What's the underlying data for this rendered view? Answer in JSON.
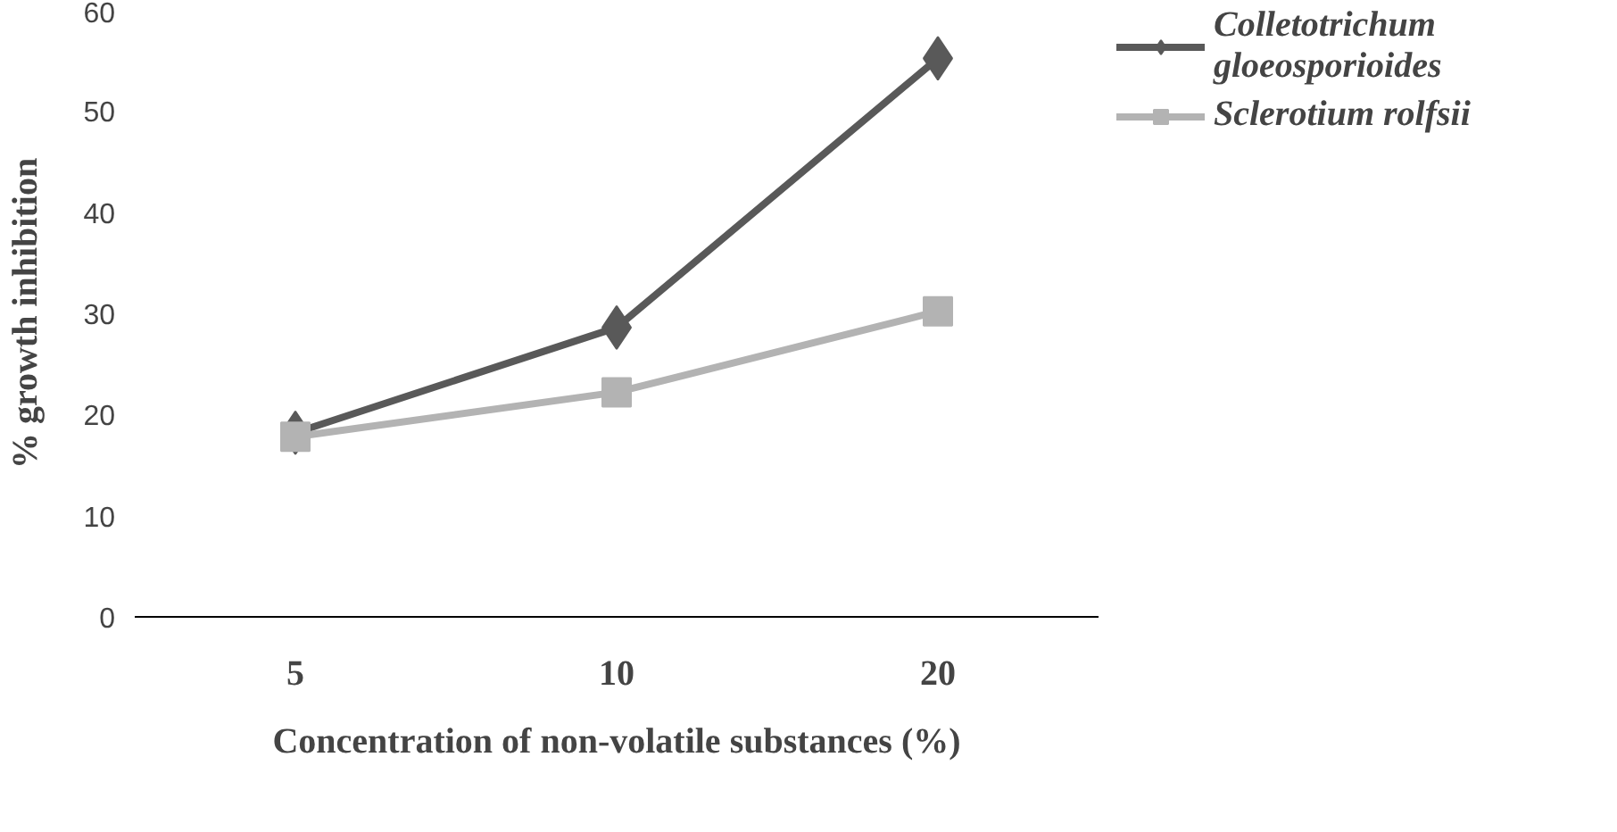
{
  "chart_data": {
    "type": "line",
    "xlabel": "Concentration of non-volatile substances (%)",
    "ylabel": "% growth inhibition",
    "categories": [
      "5",
      "10",
      "20"
    ],
    "ylim": [
      0,
      60
    ],
    "yticks": [
      0,
      10,
      20,
      30,
      40,
      50,
      60
    ],
    "grid": false,
    "legend": "right",
    "series": [
      {
        "name": "Colletotrichum gloeosporioides",
        "color": "#595959",
        "marker": "diamond",
        "values": [
          18.2,
          28.6,
          55.2
        ]
      },
      {
        "name": "Sclerotium rolfsii",
        "color": "#b3b3b3",
        "marker": "square",
        "values": [
          17.8,
          22.2,
          30.2
        ]
      }
    ]
  }
}
